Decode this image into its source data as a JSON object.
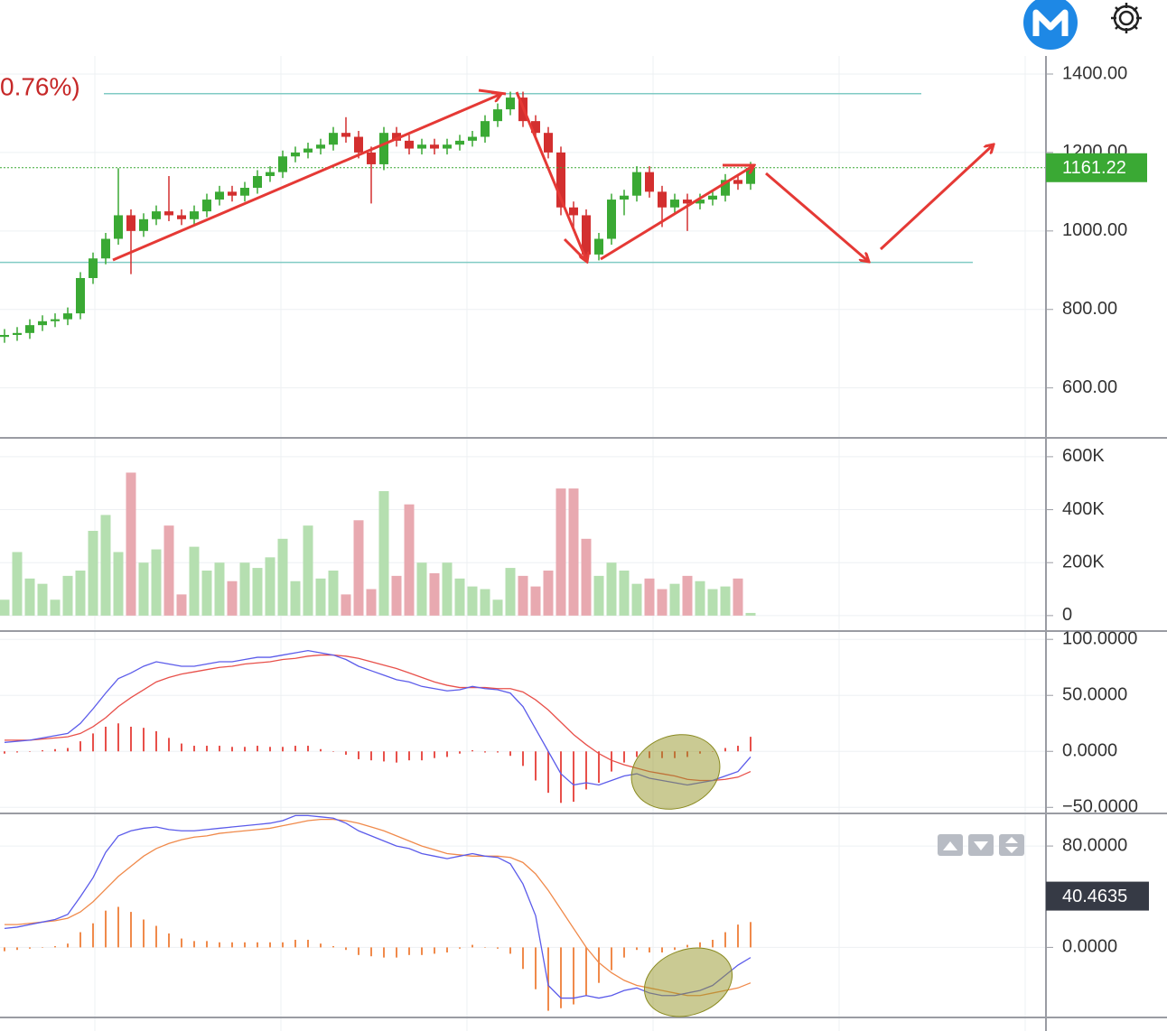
{
  "chart_data": [
    {
      "type": "candlestick",
      "header_text": "0.76%)",
      "up_color": "#3aa934",
      "down_color": "#d32f2f",
      "open": [
        730,
        735,
        740,
        760,
        770,
        775,
        790,
        880,
        930,
        980,
        1040,
        1000,
        1030,
        1050,
        1040,
        1030,
        1050,
        1080,
        1100,
        1090,
        1110,
        1140,
        1150,
        1190,
        1200,
        1210,
        1220,
        1250,
        1240,
        1200,
        1170,
        1250,
        1230,
        1210,
        1220,
        1210,
        1220,
        1230,
        1240,
        1280,
        1310,
        1340,
        1280,
        1250,
        1200,
        1060,
        1040,
        940,
        980,
        1080,
        1090,
        1150,
        1100,
        1060,
        1080,
        1070,
        1080,
        1090,
        1130,
        1120
      ],
      "high": [
        750,
        755,
        775,
        785,
        790,
        805,
        895,
        945,
        995,
        1160,
        1055,
        1045,
        1065,
        1140,
        1055,
        1065,
        1095,
        1115,
        1115,
        1125,
        1155,
        1165,
        1205,
        1215,
        1225,
        1235,
        1265,
        1290,
        1255,
        1215,
        1265,
        1265,
        1245,
        1235,
        1235,
        1235,
        1245,
        1255,
        1295,
        1325,
        1355,
        1355,
        1295,
        1265,
        1215,
        1075,
        1055,
        995,
        1095,
        1105,
        1165,
        1165,
        1115,
        1095,
        1095,
        1095,
        1105,
        1145,
        1145,
        1176
      ],
      "low": [
        715,
        720,
        725,
        745,
        755,
        760,
        775,
        865,
        915,
        965,
        890,
        985,
        1015,
        1025,
        1015,
        1015,
        1035,
        1065,
        1075,
        1075,
        1095,
        1125,
        1135,
        1175,
        1185,
        1195,
        1205,
        1225,
        1185,
        1070,
        1155,
        1215,
        1195,
        1195,
        1195,
        1195,
        1205,
        1215,
        1225,
        1265,
        1295,
        1265,
        1235,
        1185,
        1040,
        1000,
        925,
        925,
        965,
        1040,
        1075,
        1085,
        1010,
        1045,
        1000,
        1055,
        1065,
        1075,
        1105,
        1105
      ],
      "close": [
        735,
        740,
        760,
        770,
        775,
        790,
        880,
        930,
        980,
        1040,
        1000,
        1030,
        1050,
        1040,
        1030,
        1050,
        1080,
        1100,
        1090,
        1110,
        1140,
        1150,
        1190,
        1200,
        1210,
        1220,
        1250,
        1240,
        1200,
        1170,
        1250,
        1230,
        1210,
        1220,
        1210,
        1220,
        1230,
        1240,
        1280,
        1310,
        1340,
        1280,
        1250,
        1200,
        1060,
        1040,
        940,
        980,
        1080,
        1090,
        1150,
        1100,
        1060,
        1080,
        1070,
        1080,
        1090,
        1130,
        1120,
        1161
      ],
      "hlines": [
        1350,
        920
      ],
      "hline_color": "#80cbc4",
      "last_price": 1161.22,
      "last_color": "#3aa934",
      "ylim": [
        475,
        1446
      ],
      "yticks": [
        {
          "value": 600,
          "label": "600.00"
        },
        {
          "value": 800,
          "label": "800.00"
        },
        {
          "value": 1000,
          "label": "1000.00"
        },
        {
          "value": 1200,
          "label": "1200.00"
        },
        {
          "value": 1400,
          "label": "1400.00"
        }
      ]
    },
    {
      "type": "volume",
      "up_color": "#b5dfb0",
      "down_color": "#e8a9b0",
      "values": [
        60000,
        240000,
        140000,
        120000,
        60000,
        150000,
        170000,
        320000,
        380000,
        240000,
        540000,
        200000,
        250000,
        340000,
        80000,
        260000,
        170000,
        200000,
        130000,
        200000,
        180000,
        220000,
        290000,
        130000,
        340000,
        140000,
        170000,
        80000,
        360000,
        100000,
        470000,
        150000,
        420000,
        200000,
        160000,
        200000,
        140000,
        110000,
        100000,
        60000,
        180000,
        150000,
        110000,
        170000,
        480000,
        480000,
        290000,
        150000,
        200000,
        170000,
        120000,
        140000,
        100000,
        120000,
        150000,
        130000,
        100000,
        110000,
        140000,
        10000
      ],
      "ylim": [
        -55000,
        661000
      ],
      "yticks": [
        0,
        {
          "value": 200000,
          "label": "200K"
        },
        {
          "value": 400000,
          "label": "400K"
        },
        {
          "value": 600000,
          "label": "600K"
        }
      ]
    },
    {
      "type": "macd",
      "dif_color": "#5b5bea",
      "dea_color": "#e8504a",
      "hist_color": "#e8504a",
      "dif": [
        8,
        9,
        10,
        12,
        14,
        16,
        25,
        38,
        52,
        65,
        70,
        76,
        80,
        78,
        76,
        76,
        78,
        80,
        80,
        82,
        84,
        84,
        86,
        88,
        90,
        88,
        86,
        82,
        76,
        72,
        68,
        64,
        62,
        58,
        56,
        54,
        55,
        58,
        56,
        55,
        52,
        40,
        20,
        0,
        -20,
        -30,
        -28,
        -30,
        -26,
        -22,
        -20,
        -24,
        -26,
        -28,
        -30,
        -28,
        -26,
        -22,
        -18,
        -5
      ],
      "dea": [
        10,
        10,
        10,
        11,
        12,
        13,
        16,
        22,
        30,
        40,
        48,
        55,
        62,
        66,
        69,
        71,
        73,
        75,
        76,
        78,
        79,
        80,
        82,
        83,
        85,
        86,
        86,
        85,
        83,
        80,
        77,
        74,
        70,
        66,
        62,
        59,
        57,
        57,
        57,
        56,
        56,
        53,
        46,
        37,
        26,
        15,
        6,
        -2,
        -8,
        -12,
        -15,
        -18,
        -20,
        -22,
        -25,
        -26,
        -26,
        -25,
        -23,
        -18
      ],
      "hist": [
        -2,
        -1,
        0,
        1,
        2,
        3,
        9,
        16,
        22,
        25,
        22,
        21,
        18,
        12,
        7,
        5,
        5,
        5,
        4,
        4,
        5,
        4,
        4,
        5,
        5,
        2,
        0,
        -3,
        -7,
        -8,
        -9,
        -10,
        -8,
        -8,
        -6,
        -5,
        -2,
        1,
        -1,
        -1,
        -4,
        -13,
        -26,
        -37,
        -46,
        -45,
        -34,
        -28,
        -18,
        -10,
        -5,
        -6,
        -6,
        -6,
        -5,
        -2,
        0,
        3,
        5,
        13
      ],
      "ylim": [
        -53,
        105
      ],
      "yticks": [
        {
          "value": 100,
          "label": "100.0000"
        },
        {
          "value": 50,
          "label": "50.0000"
        },
        {
          "value": 0,
          "label": "0.0000"
        },
        {
          "value": -50,
          "label": "−50.0000"
        }
      ]
    },
    {
      "type": "macd",
      "dif_color": "#5b5bea",
      "dea_color": "#f08a4b",
      "hist_color": "#f08a4b",
      "dif": [
        15,
        16,
        18,
        20,
        22,
        26,
        40,
        55,
        75,
        88,
        92,
        94,
        95,
        93,
        92,
        92,
        93,
        94,
        95,
        96,
        97,
        98,
        100,
        104,
        104,
        103,
        102,
        98,
        92,
        88,
        84,
        80,
        78,
        74,
        72,
        70,
        72,
        74,
        72,
        71,
        66,
        50,
        25,
        -30,
        -40,
        -40,
        -38,
        -40,
        -38,
        -34,
        -32,
        -36,
        -38,
        -38,
        -36,
        -34,
        -30,
        -22,
        -14,
        -8
      ],
      "dea": [
        18,
        18,
        19,
        20,
        21,
        23,
        28,
        36,
        46,
        56,
        64,
        72,
        78,
        82,
        85,
        87,
        88,
        90,
        91,
        92,
        93,
        94,
        96,
        98,
        100,
        101,
        101,
        100,
        98,
        95,
        92,
        88,
        84,
        80,
        77,
        74,
        73,
        72,
        72,
        72,
        71,
        67,
        58,
        45,
        30,
        15,
        0,
        -12,
        -20,
        -26,
        -30,
        -32,
        -34,
        -36,
        -38,
        -38,
        -36,
        -34,
        -32,
        -28
      ],
      "hist": [
        -3,
        -2,
        -1,
        0,
        1,
        3,
        12,
        19,
        29,
        32,
        28,
        22,
        17,
        11,
        7,
        5,
        5,
        4,
        4,
        4,
        4,
        4,
        4,
        6,
        6,
        3,
        1,
        -2,
        -6,
        -7,
        -8,
        -8,
        -6,
        -6,
        -5,
        -4,
        -1,
        2,
        0,
        -1,
        -5,
        -17,
        -33,
        -50,
        -48,
        -45,
        -38,
        -28,
        -18,
        -8,
        -2,
        -4,
        -4,
        -2,
        2,
        4,
        6,
        12,
        18,
        20
      ],
      "last_value": 40.4635,
      "last_color": "#363a45",
      "ylim": [
        -56,
        105
      ],
      "yticks": [
        {
          "value": 80,
          "label": "80.0000"
        },
        {
          "value": 0,
          "label": "0.0000"
        }
      ]
    }
  ]
}
